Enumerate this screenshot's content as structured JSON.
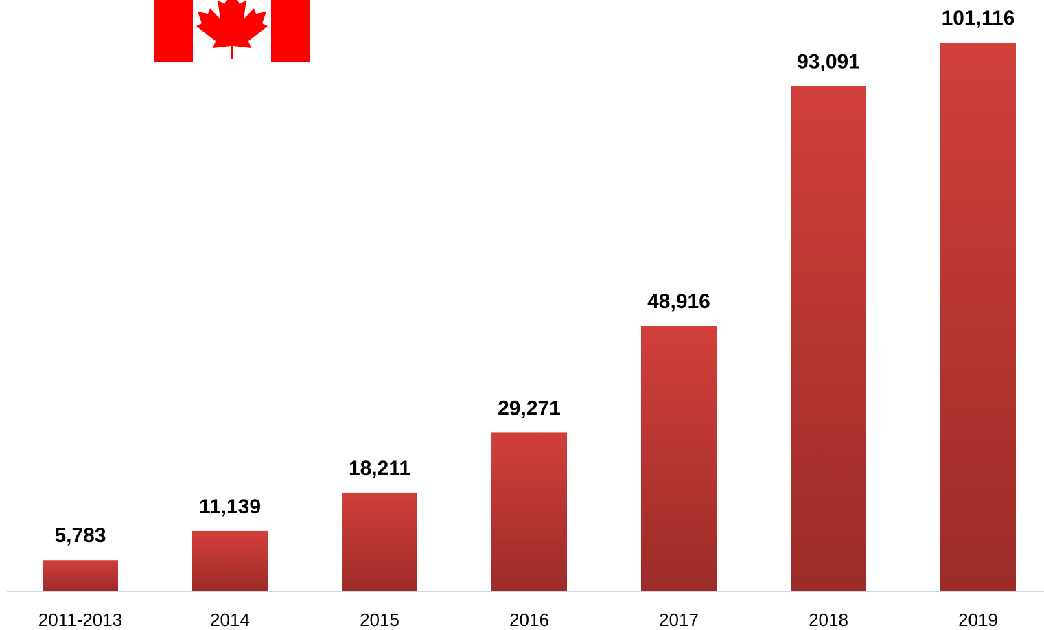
{
  "chart_data": {
    "type": "bar",
    "categories": [
      "2011-2013",
      "2014",
      "2015",
      "2016",
      "2017",
      "2018",
      "2019"
    ],
    "values": [
      5783,
      11139,
      18211,
      29271,
      48916,
      93091,
      101116
    ],
    "value_labels": [
      "5,783",
      "11,139",
      "18,211",
      "29,271",
      "48,916",
      "93,091",
      "101,116"
    ],
    "title": "",
    "xlabel": "",
    "ylabel": "",
    "ylim": [
      0,
      101116
    ],
    "grid": false,
    "legend": "none",
    "colors": {
      "bar_top": "#D13F3B",
      "bar_bottom": "#9C2B28",
      "axis": "#C9D7EA",
      "flag_red": "#FF0000",
      "flag_white": "#FFFFFF"
    }
  },
  "decoration": {
    "flag_icon": "canada-flag-icon"
  }
}
